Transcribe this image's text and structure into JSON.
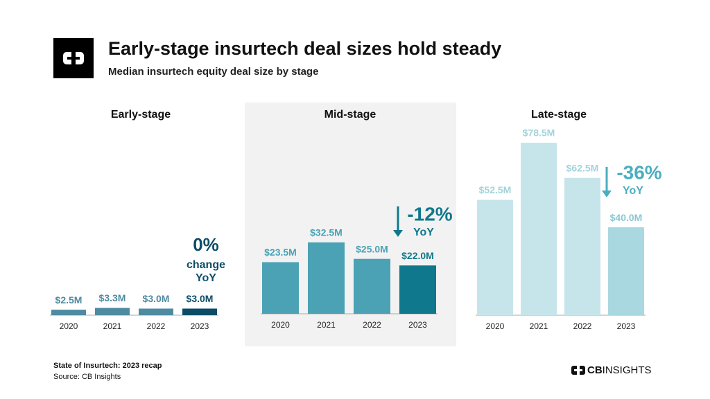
{
  "title": "Early-stage insurtech deal sizes hold steady",
  "subtitle": "Median insurtech equity deal size by stage",
  "footer": {
    "report": "State of Insurtech: 2023 recap",
    "source": "Source: CB Insights"
  },
  "brand": {
    "bold": "CB",
    "light": "INSIGHTS"
  },
  "chart_data": [
    {
      "type": "bar",
      "title": "Early-stage",
      "categories": [
        "2020",
        "2021",
        "2022",
        "2023"
      ],
      "values": [
        2.5,
        3.3,
        3.0,
        3.0
      ],
      "value_labels": [
        "$2.5M",
        "$3.3M",
        "$3.0M",
        "$3.0M"
      ],
      "colors": [
        "#4f8ba0",
        "#4f8ba0",
        "#4f8ba0",
        "#0e4d68"
      ],
      "label_colors": [
        "#4f8ba0",
        "#4f8ba0",
        "#4f8ba0",
        "#0e4d68"
      ],
      "annotation": {
        "change": "0%",
        "lines": [
          "change",
          "YoY"
        ],
        "color": "#0e4d68",
        "arrow": false
      }
    },
    {
      "type": "bar",
      "title": "Mid-stage",
      "categories": [
        "2020",
        "2021",
        "2022",
        "2023"
      ],
      "values": [
        23.5,
        32.5,
        25.0,
        22.0
      ],
      "value_labels": [
        "$23.5M",
        "$32.5M",
        "$25.0M",
        "$22.0M"
      ],
      "colors": [
        "#4aa2b4",
        "#4aa2b4",
        "#4aa2b4",
        "#0f788c"
      ],
      "label_colors": [
        "#4aa2b4",
        "#4aa2b4",
        "#4aa2b4",
        "#0f788c"
      ],
      "annotation": {
        "change": "-12%",
        "lines": [
          "YoY"
        ],
        "color": "#0f788c",
        "arrow": true
      }
    },
    {
      "type": "bar",
      "title": "Late-stage",
      "categories": [
        "2020",
        "2021",
        "2022",
        "2023"
      ],
      "values": [
        52.5,
        78.5,
        62.5,
        40.0
      ],
      "value_labels": [
        "$52.5M",
        "$78.5M",
        "$62.5M",
        "$40.0M"
      ],
      "colors": [
        "#c6e5eb",
        "#c6e5eb",
        "#c6e5eb",
        "#a9d8e1"
      ],
      "label_colors": [
        "#a3d3dc",
        "#a3d3dc",
        "#a3d3dc",
        "#8ac7d3"
      ],
      "annotation": {
        "change": "-36%",
        "lines": [
          "YoY"
        ],
        "color": "#4aaec0",
        "arrow": true
      }
    }
  ]
}
